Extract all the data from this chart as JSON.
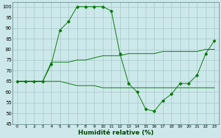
{
  "title": "",
  "xlabel": "Humidité relative (%)",
  "ylabel": "",
  "bg_color": "#cce8ea",
  "grid_color": "#aacccc",
  "line_color": "#007700",
  "xlim": [
    -0.5,
    23.5
  ],
  "ylim": [
    45,
    102
  ],
  "yticks": [
    45,
    50,
    55,
    60,
    65,
    70,
    75,
    80,
    85,
    90,
    95,
    100
  ],
  "xticks": [
    0,
    1,
    2,
    3,
    4,
    5,
    6,
    7,
    8,
    9,
    10,
    11,
    12,
    13,
    14,
    15,
    16,
    17,
    18,
    19,
    20,
    21,
    22,
    23
  ],
  "series": [
    {
      "x": [
        0,
        1,
        2,
        3,
        4,
        5,
        6,
        7,
        8,
        9,
        10,
        11,
        12,
        13,
        14,
        15,
        16,
        17,
        18,
        19,
        20,
        21,
        22,
        23
      ],
      "y": [
        65,
        65,
        65,
        65,
        65,
        65,
        64,
        63,
        63,
        63,
        62,
        62,
        62,
        62,
        62,
        62,
        62,
        62,
        62,
        62,
        62,
        62,
        62,
        62
      ],
      "marker": false
    },
    {
      "x": [
        0,
        1,
        2,
        3,
        4,
        5,
        6,
        7,
        8,
        9,
        10,
        11,
        12,
        13,
        14,
        15,
        16,
        17,
        18,
        19,
        20,
        21,
        22,
        23
      ],
      "y": [
        65,
        65,
        65,
        65,
        74,
        74,
        74,
        75,
        75,
        76,
        77,
        77,
        77,
        78,
        78,
        78,
        78,
        79,
        79,
        79,
        79,
        79,
        80,
        80
      ],
      "marker": false
    },
    {
      "x": [
        0,
        1,
        2,
        3,
        4,
        5,
        6,
        7,
        8,
        9,
        10,
        11,
        12,
        13,
        14,
        15,
        16,
        17,
        18,
        19,
        20,
        21,
        22,
        23
      ],
      "y": [
        65,
        65,
        65,
        65,
        73,
        89,
        93,
        100,
        100,
        100,
        100,
        98,
        78,
        64,
        60,
        52,
        51,
        56,
        59,
        64,
        64,
        68,
        78,
        84
      ],
      "marker": true
    }
  ]
}
